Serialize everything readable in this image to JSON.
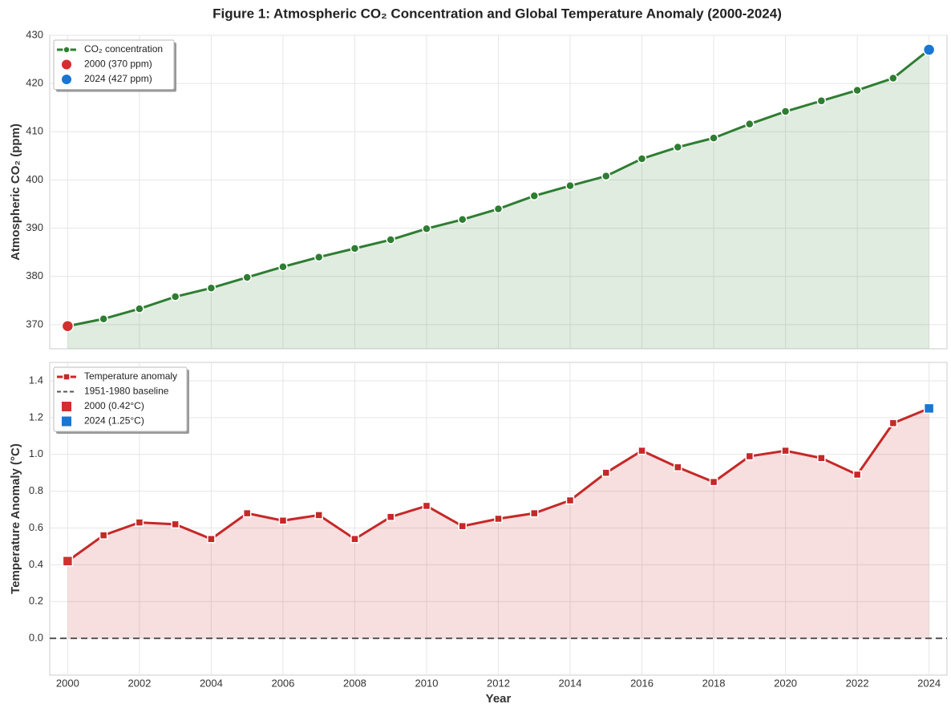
{
  "title": "Figure 1: Atmospheric CO₂ Concentration and Global Temperature Anomaly (2000-2024)",
  "chart_data": [
    {
      "type": "line",
      "ylabel": "Atmospheric CO₂ (ppm)",
      "x": [
        2000,
        2001,
        2002,
        2003,
        2004,
        2005,
        2006,
        2007,
        2008,
        2009,
        2010,
        2011,
        2012,
        2013,
        2014,
        2015,
        2016,
        2017,
        2018,
        2019,
        2020,
        2021,
        2022,
        2023,
        2024
      ],
      "xlim": [
        1999.5,
        2024.5
      ],
      "xticks": [
        2000,
        2002,
        2004,
        2006,
        2008,
        2010,
        2012,
        2014,
        2016,
        2018,
        2020,
        2022,
        2024
      ],
      "xtick_labels": false,
      "ylim": [
        365,
        430
      ],
      "yticks": [
        370,
        380,
        390,
        400,
        410,
        420,
        430
      ],
      "grid": true,
      "legend": "upper left",
      "series": [
        {
          "kind": "line",
          "name": "CO₂ concentration",
          "color": "#2e7d32",
          "marker": "circle",
          "area": true,
          "values": [
            369.7,
            371.2,
            373.3,
            375.8,
            377.6,
            379.8,
            382.0,
            384.0,
            385.8,
            387.6,
            389.9,
            391.8,
            394.0,
            396.7,
            398.8,
            400.8,
            404.4,
            406.8,
            408.7,
            411.6,
            414.2,
            416.4,
            418.6,
            421.1,
            427
          ]
        },
        {
          "kind": "point",
          "name": "2000 (370 ppm)",
          "color": "#d32f2f",
          "marker": "circle",
          "x": [
            2000
          ],
          "values": [
            369.7
          ]
        },
        {
          "kind": "point",
          "name": "2024 (427 ppm)",
          "color": "#1976d2",
          "marker": "circle",
          "x": [
            2024
          ],
          "values": [
            427
          ]
        }
      ]
    },
    {
      "type": "line",
      "ylabel": "Temperature Anomaly (°C)",
      "xlabel": "Year",
      "x": [
        2000,
        2001,
        2002,
        2003,
        2004,
        2005,
        2006,
        2007,
        2008,
        2009,
        2010,
        2011,
        2012,
        2013,
        2014,
        2015,
        2016,
        2017,
        2018,
        2019,
        2020,
        2021,
        2022,
        2023,
        2024
      ],
      "xlim": [
        1999.5,
        2024.5
      ],
      "xticks": [
        2000,
        2002,
        2004,
        2006,
        2008,
        2010,
        2012,
        2014,
        2016,
        2018,
        2020,
        2022,
        2024
      ],
      "xtick_labels": true,
      "ylim": [
        -0.2,
        1.5
      ],
      "yticks": [
        {
          "value": 0,
          "label": "0.0"
        },
        0.2,
        0.4,
        0.6,
        0.8,
        {
          "value": 1,
          "label": "1.0"
        },
        1.2,
        1.4
      ],
      "grid": true,
      "legend": "upper left",
      "series": [
        {
          "kind": "line",
          "name": "Temperature anomaly",
          "color": "#c62828",
          "marker": "square",
          "area": true,
          "values": [
            0.42,
            0.56,
            0.63,
            0.62,
            0.54,
            0.68,
            0.64,
            0.67,
            0.54,
            0.66,
            0.72,
            0.61,
            0.65,
            0.68,
            0.75,
            0.9,
            1.02,
            0.93,
            0.85,
            0.99,
            1.02,
            0.98,
            0.89,
            1.17,
            1.25
          ]
        },
        {
          "kind": "hline",
          "name": "1951-1980 baseline",
          "color": "#555555",
          "value": 0
        },
        {
          "kind": "point",
          "name": "2000 (0.42°C)",
          "color": "#d32f2f",
          "marker": "square",
          "x": [
            2000
          ],
          "values": [
            0.42
          ]
        },
        {
          "kind": "point",
          "name": "2024 (1.25°C)",
          "color": "#1976d2",
          "marker": "square",
          "x": [
            2024
          ],
          "values": [
            1.25
          ]
        }
      ]
    }
  ]
}
